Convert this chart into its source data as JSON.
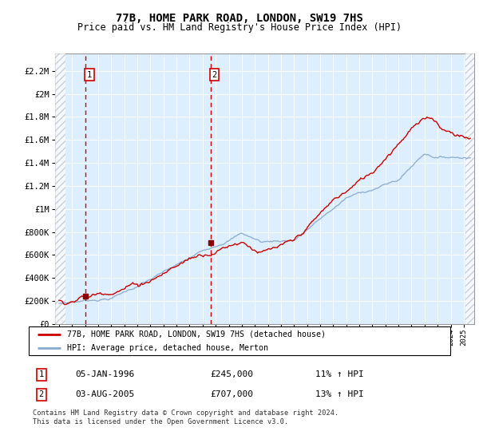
{
  "title1": "77B, HOME PARK ROAD, LONDON, SW19 7HS",
  "title2": "Price paid vs. HM Land Registry's House Price Index (HPI)",
  "ytick_values": [
    0,
    200000,
    400000,
    600000,
    800000,
    1000000,
    1200000,
    1400000,
    1600000,
    1800000,
    2000000,
    2200000
  ],
  "ytick_labels": [
    "£0",
    "£200K",
    "£400K",
    "£600K",
    "£800K",
    "£1M",
    "£1.2M",
    "£1.4M",
    "£1.6M",
    "£1.8M",
    "£2M",
    "£2.2M"
  ],
  "ylim": [
    0,
    2350000
  ],
  "xlim_start": 1993.7,
  "xlim_end": 2025.8,
  "hatch_left_end": 1994.5,
  "hatch_right_start": 2025.1,
  "sale1_year": 1996.03,
  "sale1_price": 245000,
  "sale2_year": 2005.6,
  "sale2_price": 707000,
  "legend_line1": "77B, HOME PARK ROAD, LONDON, SW19 7HS (detached house)",
  "legend_line2": "HPI: Average price, detached house, Merton",
  "annotation1_label": "05-JAN-1996",
  "annotation1_price": "£245,000",
  "annotation1_hpi": "11% ↑ HPI",
  "annotation2_label": "03-AUG-2005",
  "annotation2_price": "£707,000",
  "annotation2_hpi": "13% ↑ HPI",
  "footer": "Contains HM Land Registry data © Crown copyright and database right 2024.\nThis data is licensed under the Open Government Licence v3.0.",
  "bg_blue": "#ddeeff",
  "grid_color": "#d0d8e8",
  "line_red": "#cc0000",
  "line_blue": "#88aacc",
  "sale_dot_color": "#880000",
  "hatch_color": "#bbbbcc"
}
